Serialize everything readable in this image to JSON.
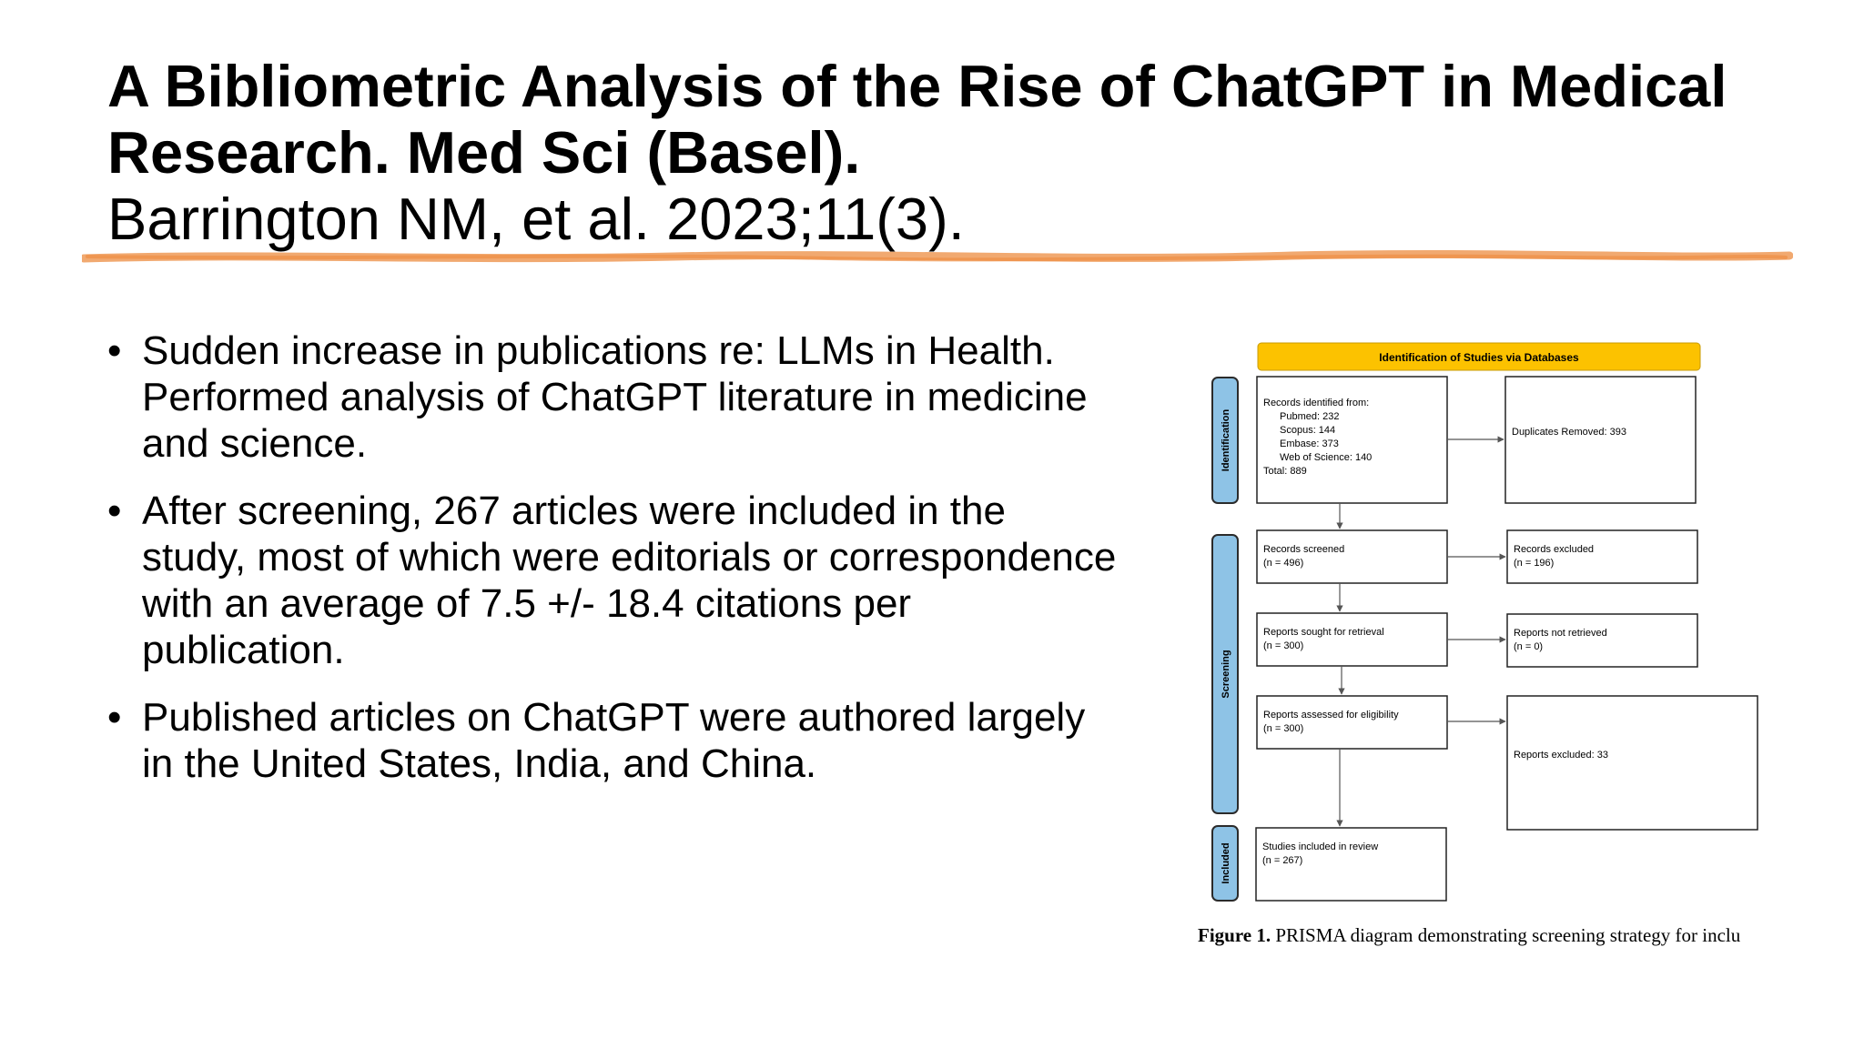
{
  "slide": {
    "title": "A Bibliometric Analysis of the Rise of ChatGPT in Medical Research. Med Sci (Basel).",
    "citation": "Barrington NM, et al. 2023;11(3).",
    "bullets": [
      "Sudden increase in publications re: LLMs in Health. Performed analysis of ChatGPT literature in medicine and science.",
      "After screening, 267 articles were included in the study, most of which were editorials or correspondence with an average of 7.5 +/- 18.4 citations per publication.",
      "Published articles on ChatGPT were authored largely in the United States, India, and China."
    ]
  },
  "figure": {
    "header": "Identification of Studies via Databases",
    "stages": {
      "identification": "Identification",
      "screening": "Screening",
      "included": "Included"
    },
    "records_identified": {
      "heading": "Records identified from:",
      "pubmed": "Pubmed: 232",
      "scopus": "Scopus: 144",
      "embase": "Embase: 373",
      "wos": "Web of Science: 140",
      "total": "Total: 889"
    },
    "duplicates": "Duplicates Removed: 393",
    "screened": {
      "label": "Records screened",
      "n": "(n = 496)"
    },
    "excluded": {
      "label": "Records excluded",
      "n": "(n = 196)"
    },
    "sought": {
      "label": "Reports sought for retrieval",
      "n": "(n = 300)"
    },
    "not_retrieved": {
      "label": "Reports not retrieved",
      "n": "(n = 0)"
    },
    "assessed": {
      "label": "Reports assessed for eligibility",
      "n": "(n = 300)"
    },
    "reports_excluded": "Reports excluded: 33",
    "included_studies": {
      "label": "Studies included in review",
      "n": "(n = 267)"
    },
    "caption_bold": "Figure 1.",
    "caption_text": "PRISMA diagram demonstrating screening strategy for inclu"
  },
  "colors": {
    "header_fill": "#FCC200",
    "stage_fill": "#8EC3E6",
    "divider": "#F0A060"
  }
}
